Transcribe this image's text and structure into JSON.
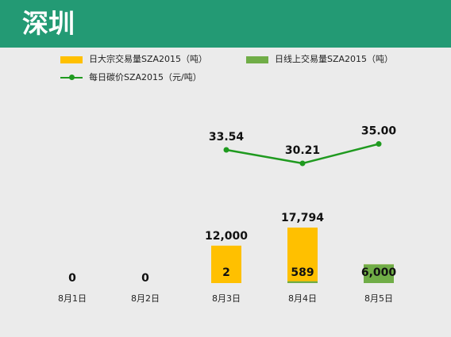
{
  "header": {
    "title": "深圳"
  },
  "colors": {
    "header_bg": "#239a74",
    "bulk": "#ffc000",
    "online": "#70ad47",
    "price": "#1f9a1f"
  },
  "chart_data": {
    "type": "bar+line",
    "categories": [
      "8月1日",
      "8月2日",
      "8月3日",
      "8月4日",
      "8月5日"
    ],
    "series": [
      {
        "name": "日大宗交易量SZA2015（吨）",
        "kind": "bar",
        "values": [
          0,
          0,
          12000,
          17794,
          6000
        ],
        "labels": [
          "0",
          "0",
          "12,000",
          "17,794",
          ""
        ]
      },
      {
        "name": "日线上交易量SZA2015（吨）",
        "kind": "bar",
        "values": [
          0,
          0,
          2,
          589,
          6000
        ],
        "labels": [
          "",
          "",
          "2",
          "589",
          "6,000"
        ]
      },
      {
        "name": "每日碳价SZA2015（元/吨）",
        "kind": "line",
        "values": [
          null,
          null,
          33.54,
          30.21,
          35.0
        ],
        "labels": [
          "",
          "",
          "33.54",
          "30.21",
          "35.00"
        ]
      }
    ],
    "legend_position": "top"
  }
}
